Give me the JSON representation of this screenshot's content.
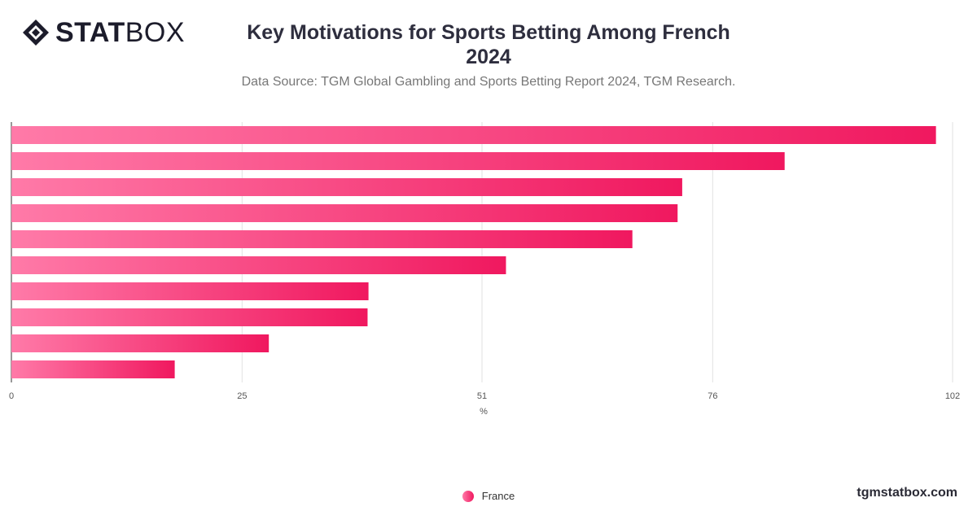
{
  "brand": {
    "logo_bold": "STAT",
    "logo_light": "BOX",
    "watermark": "tgmstatbox.com"
  },
  "header": {
    "title_line1": "Key Motivations for Sports Betting Among French",
    "title_line2": "2024",
    "subtitle": "Data Source: TGM Global Gambling and Sports Betting Report 2024, TGM Research."
  },
  "colors": {
    "bar_start": "#ff7aa8",
    "bar_end": "#f0185f",
    "grid": "#e2e2e2",
    "axis": "#333333"
  },
  "chart_data": {
    "type": "bar",
    "orientation": "horizontal",
    "categories": [
      "",
      "",
      "",
      "",
      "",
      "",
      "",
      "",
      "",
      ""
    ],
    "series": [
      {
        "name": "France",
        "values": [
          100.2,
          83.8,
          72.7,
          72.2,
          67.3,
          53.6,
          38.7,
          38.6,
          27.9,
          17.7
        ]
      }
    ],
    "xlabel": "%",
    "ylabel": "",
    "xlim": [
      0,
      102
    ],
    "xticks": [
      0,
      25,
      51,
      76,
      102
    ],
    "grid": true,
    "legend": "bottom-center"
  }
}
